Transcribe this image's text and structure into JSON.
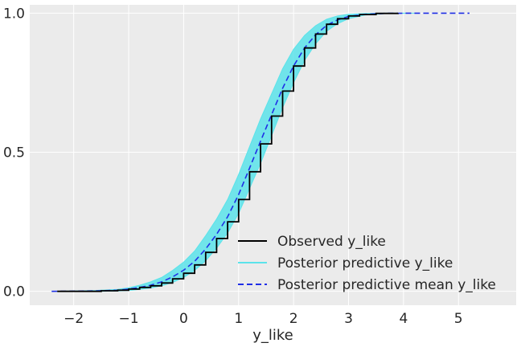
{
  "chart_data": {
    "type": "line",
    "title": "",
    "xlabel": "y_like",
    "ylabel": "",
    "xlim": [
      -2.8,
      6.05
    ],
    "ylim": [
      -0.05,
      1.03
    ],
    "xticks": [
      -2,
      -1,
      0,
      1,
      2,
      3,
      4,
      5
    ],
    "xtick_labels": [
      "−2",
      "−1",
      "0",
      "1",
      "2",
      "3",
      "4",
      "5"
    ],
    "yticks": [
      0.0,
      0.5,
      1.0
    ],
    "ytick_labels": [
      "0.0",
      "0.5",
      "1.0"
    ],
    "grid": true,
    "legend_position": "bottom-right",
    "colors": {
      "background": "#ebebeb",
      "grid": "#ffffff",
      "observed": "#000000",
      "posterior": "#5be3ea",
      "posterior_mean": "#1f2ee6"
    },
    "series": [
      {
        "name": "Observed y_like",
        "style": "step",
        "x": [
          -2.3,
          -1.5,
          -1.2,
          -1.0,
          -0.8,
          -0.6,
          -0.4,
          -0.2,
          0.0,
          0.2,
          0.4,
          0.6,
          0.8,
          1.0,
          1.2,
          1.4,
          1.6,
          1.8,
          2.0,
          2.2,
          2.4,
          2.6,
          2.8,
          3.0,
          3.2,
          3.5,
          3.9
        ],
        "y": [
          0.0,
          0.002,
          0.004,
          0.008,
          0.014,
          0.02,
          0.03,
          0.045,
          0.065,
          0.095,
          0.14,
          0.19,
          0.25,
          0.33,
          0.43,
          0.53,
          0.63,
          0.72,
          0.81,
          0.875,
          0.925,
          0.96,
          0.98,
          0.99,
          0.995,
          0.999,
          1.0
        ]
      },
      {
        "name": "Posterior predictive y_like",
        "style": "band",
        "x": [
          -2.4,
          -1.6,
          -1.2,
          -1.0,
          -0.8,
          -0.6,
          -0.4,
          -0.2,
          0.0,
          0.2,
          0.4,
          0.6,
          0.8,
          1.0,
          1.2,
          1.4,
          1.6,
          1.8,
          2.0,
          2.2,
          2.4,
          2.6,
          2.8,
          3.0,
          3.3,
          3.7,
          4.2
        ],
        "y_low": [
          0.0,
          0.0,
          0.001,
          0.003,
          0.007,
          0.012,
          0.02,
          0.032,
          0.05,
          0.075,
          0.11,
          0.155,
          0.21,
          0.28,
          0.37,
          0.46,
          0.56,
          0.66,
          0.75,
          0.83,
          0.89,
          0.935,
          0.962,
          0.98,
          0.993,
          0.999,
          1.0
        ],
        "y_high": [
          0.0,
          0.003,
          0.007,
          0.013,
          0.022,
          0.034,
          0.05,
          0.075,
          0.105,
          0.145,
          0.2,
          0.26,
          0.33,
          0.42,
          0.52,
          0.62,
          0.71,
          0.8,
          0.87,
          0.92,
          0.955,
          0.978,
          0.99,
          0.996,
          0.999,
          1.0,
          1.0
        ]
      },
      {
        "name": "Posterior predictive mean y_like",
        "style": "dashed",
        "x": [
          -2.4,
          -1.6,
          -1.2,
          -1.0,
          -0.8,
          -0.6,
          -0.4,
          -0.2,
          0.0,
          0.2,
          0.4,
          0.6,
          0.8,
          1.0,
          1.2,
          1.4,
          1.6,
          1.8,
          2.0,
          2.2,
          2.4,
          2.6,
          2.8,
          3.0,
          3.3,
          3.7,
          4.2,
          5.2
        ],
        "y": [
          0.0,
          0.0015,
          0.004,
          0.008,
          0.014,
          0.022,
          0.034,
          0.052,
          0.076,
          0.108,
          0.152,
          0.205,
          0.268,
          0.348,
          0.443,
          0.54,
          0.635,
          0.73,
          0.81,
          0.875,
          0.922,
          0.956,
          0.976,
          0.988,
          0.996,
          0.9995,
          1.0,
          1.0
        ]
      }
    ]
  }
}
